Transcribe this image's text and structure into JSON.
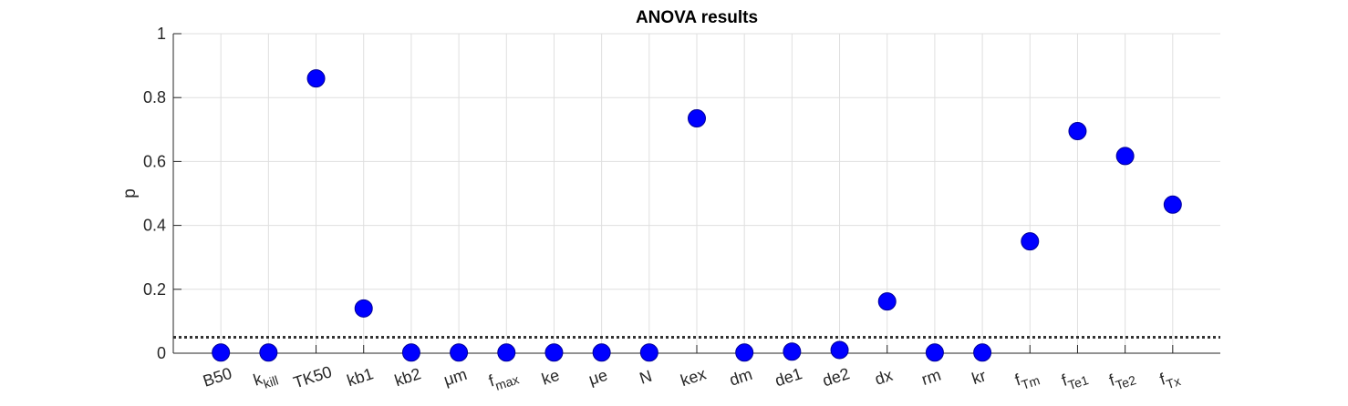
{
  "chart_data": {
    "type": "scatter",
    "title": "ANOVA results",
    "xlabel": "",
    "ylabel": "p",
    "ylim": [
      0,
      1
    ],
    "yticks": [
      "0",
      "0.2",
      "0.4",
      "0.6",
      "0.8",
      "1"
    ],
    "grid": true,
    "threshold": 0.05,
    "categories": [
      {
        "base": "B50",
        "sub": ""
      },
      {
        "base": "k",
        "sub": "kill"
      },
      {
        "base": "TK50",
        "sub": ""
      },
      {
        "base": "kb1",
        "sub": ""
      },
      {
        "base": "kb2",
        "sub": ""
      },
      {
        "base": "μm",
        "sub": ""
      },
      {
        "base": "f",
        "sub": "max"
      },
      {
        "base": "ke",
        "sub": ""
      },
      {
        "base": "μe",
        "sub": ""
      },
      {
        "base": "N",
        "sub": ""
      },
      {
        "base": "kex",
        "sub": ""
      },
      {
        "base": "dm",
        "sub": ""
      },
      {
        "base": "de1",
        "sub": ""
      },
      {
        "base": "de2",
        "sub": ""
      },
      {
        "base": "dx",
        "sub": ""
      },
      {
        "base": "rm",
        "sub": ""
      },
      {
        "base": "kr",
        "sub": ""
      },
      {
        "base": "f",
        "sub": "Tm"
      },
      {
        "base": "f",
        "sub": "Te1"
      },
      {
        "base": "f",
        "sub": "Te2"
      },
      {
        "base": "f",
        "sub": "Tx"
      }
    ],
    "values": [
      0.002,
      0.002,
      0.86,
      0.14,
      0.002,
      0.002,
      0.002,
      0.002,
      0.002,
      0.002,
      0.735,
      0.002,
      0.005,
      0.01,
      0.162,
      0.002,
      0.002,
      0.35,
      0.695,
      0.617,
      0.465
    ],
    "colors": {
      "marker": "#0000ff",
      "marker_edge": "#000099",
      "threshold": "#333333",
      "grid": "#dfdfdf",
      "axis": "#262626"
    }
  }
}
